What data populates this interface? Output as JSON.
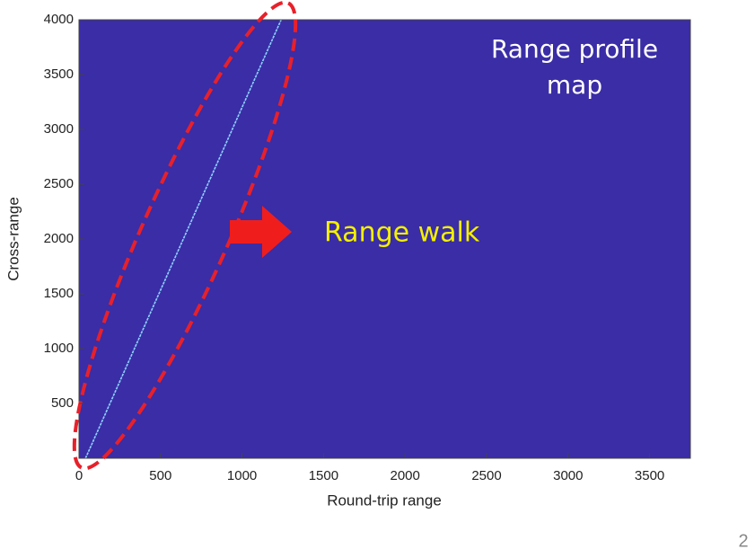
{
  "chart_data": {
    "type": "line",
    "xlabel": "Round-trip range",
    "ylabel": "Cross-range",
    "xlim": [
      0,
      3750
    ],
    "ylim": [
      0,
      4000
    ],
    "xticks": [
      0,
      500,
      1000,
      1500,
      2000,
      2500,
      3000,
      3500
    ],
    "yticks": [
      500,
      1000,
      1500,
      2000,
      2500,
      3000,
      3500,
      4000
    ],
    "background": "#3a2da6",
    "series": [
      {
        "color": "#8fd3ff",
        "x": [
          40,
          1240
        ],
        "values": [
          0,
          4000
        ]
      }
    ],
    "annotations": {
      "map_title": [
        "Range profile",
        "map"
      ],
      "walk": "Range walk"
    }
  },
  "page_number": "2"
}
